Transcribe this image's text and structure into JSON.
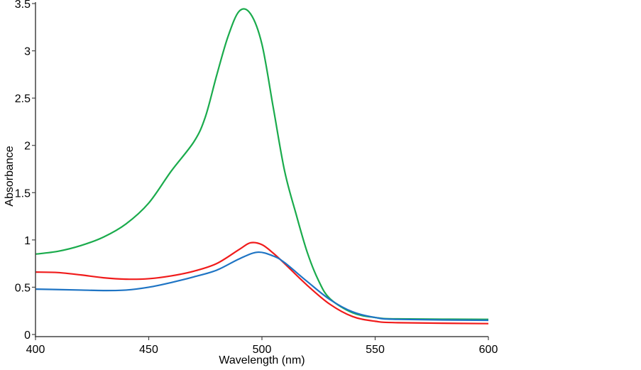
{
  "chart_data": {
    "type": "line",
    "title": "",
    "xlabel": "Wavelength (nm)",
    "ylabel": "Absorbance",
    "xlim": [
      400,
      600
    ],
    "ylim": [
      0,
      3.5
    ],
    "xticks": [
      400,
      450,
      500,
      550,
      600
    ],
    "xtick_labels": [
      "400",
      "450",
      "500",
      "550",
      "600"
    ],
    "yticks": [
      0,
      0.5,
      1,
      1.5,
      2,
      2.5,
      3,
      3.5
    ],
    "ytick_labels": [
      "0",
      "0.5",
      "1",
      "1.5",
      "2",
      "2.5",
      "3",
      "3.5"
    ],
    "grid": false,
    "series": [
      {
        "name": "green",
        "color": "#1aab4c",
        "x": [
          400,
          410,
          420,
          430,
          440,
          450,
          460,
          470,
          475,
          480,
          485,
          490,
          495,
          500,
          505,
          510,
          515,
          520,
          525,
          530,
          540,
          550,
          560,
          600
        ],
        "y": [
          0.85,
          0.88,
          0.94,
          1.03,
          1.17,
          1.39,
          1.73,
          2.04,
          2.3,
          2.74,
          3.15,
          3.42,
          3.39,
          3.07,
          2.4,
          1.73,
          1.28,
          0.87,
          0.57,
          0.38,
          0.23,
          0.18,
          0.165,
          0.16
        ]
      },
      {
        "name": "red",
        "color": "#f01b1b",
        "x": [
          400,
          410,
          420,
          430,
          440,
          450,
          460,
          470,
          480,
          490,
          495,
          500,
          505,
          510,
          520,
          530,
          540,
          550,
          560,
          600
        ],
        "y": [
          0.66,
          0.655,
          0.63,
          0.6,
          0.585,
          0.59,
          0.62,
          0.67,
          0.75,
          0.9,
          0.97,
          0.95,
          0.86,
          0.75,
          0.52,
          0.32,
          0.19,
          0.14,
          0.125,
          0.115
        ]
      },
      {
        "name": "blue",
        "color": "#1e74c4",
        "x": [
          400,
          410,
          420,
          430,
          440,
          450,
          460,
          470,
          480,
          490,
          498,
          505,
          510,
          520,
          530,
          540,
          550,
          560,
          600
        ],
        "y": [
          0.48,
          0.475,
          0.47,
          0.465,
          0.47,
          0.5,
          0.55,
          0.61,
          0.68,
          0.8,
          0.87,
          0.83,
          0.76,
          0.56,
          0.37,
          0.24,
          0.18,
          0.16,
          0.15
        ]
      }
    ]
  }
}
